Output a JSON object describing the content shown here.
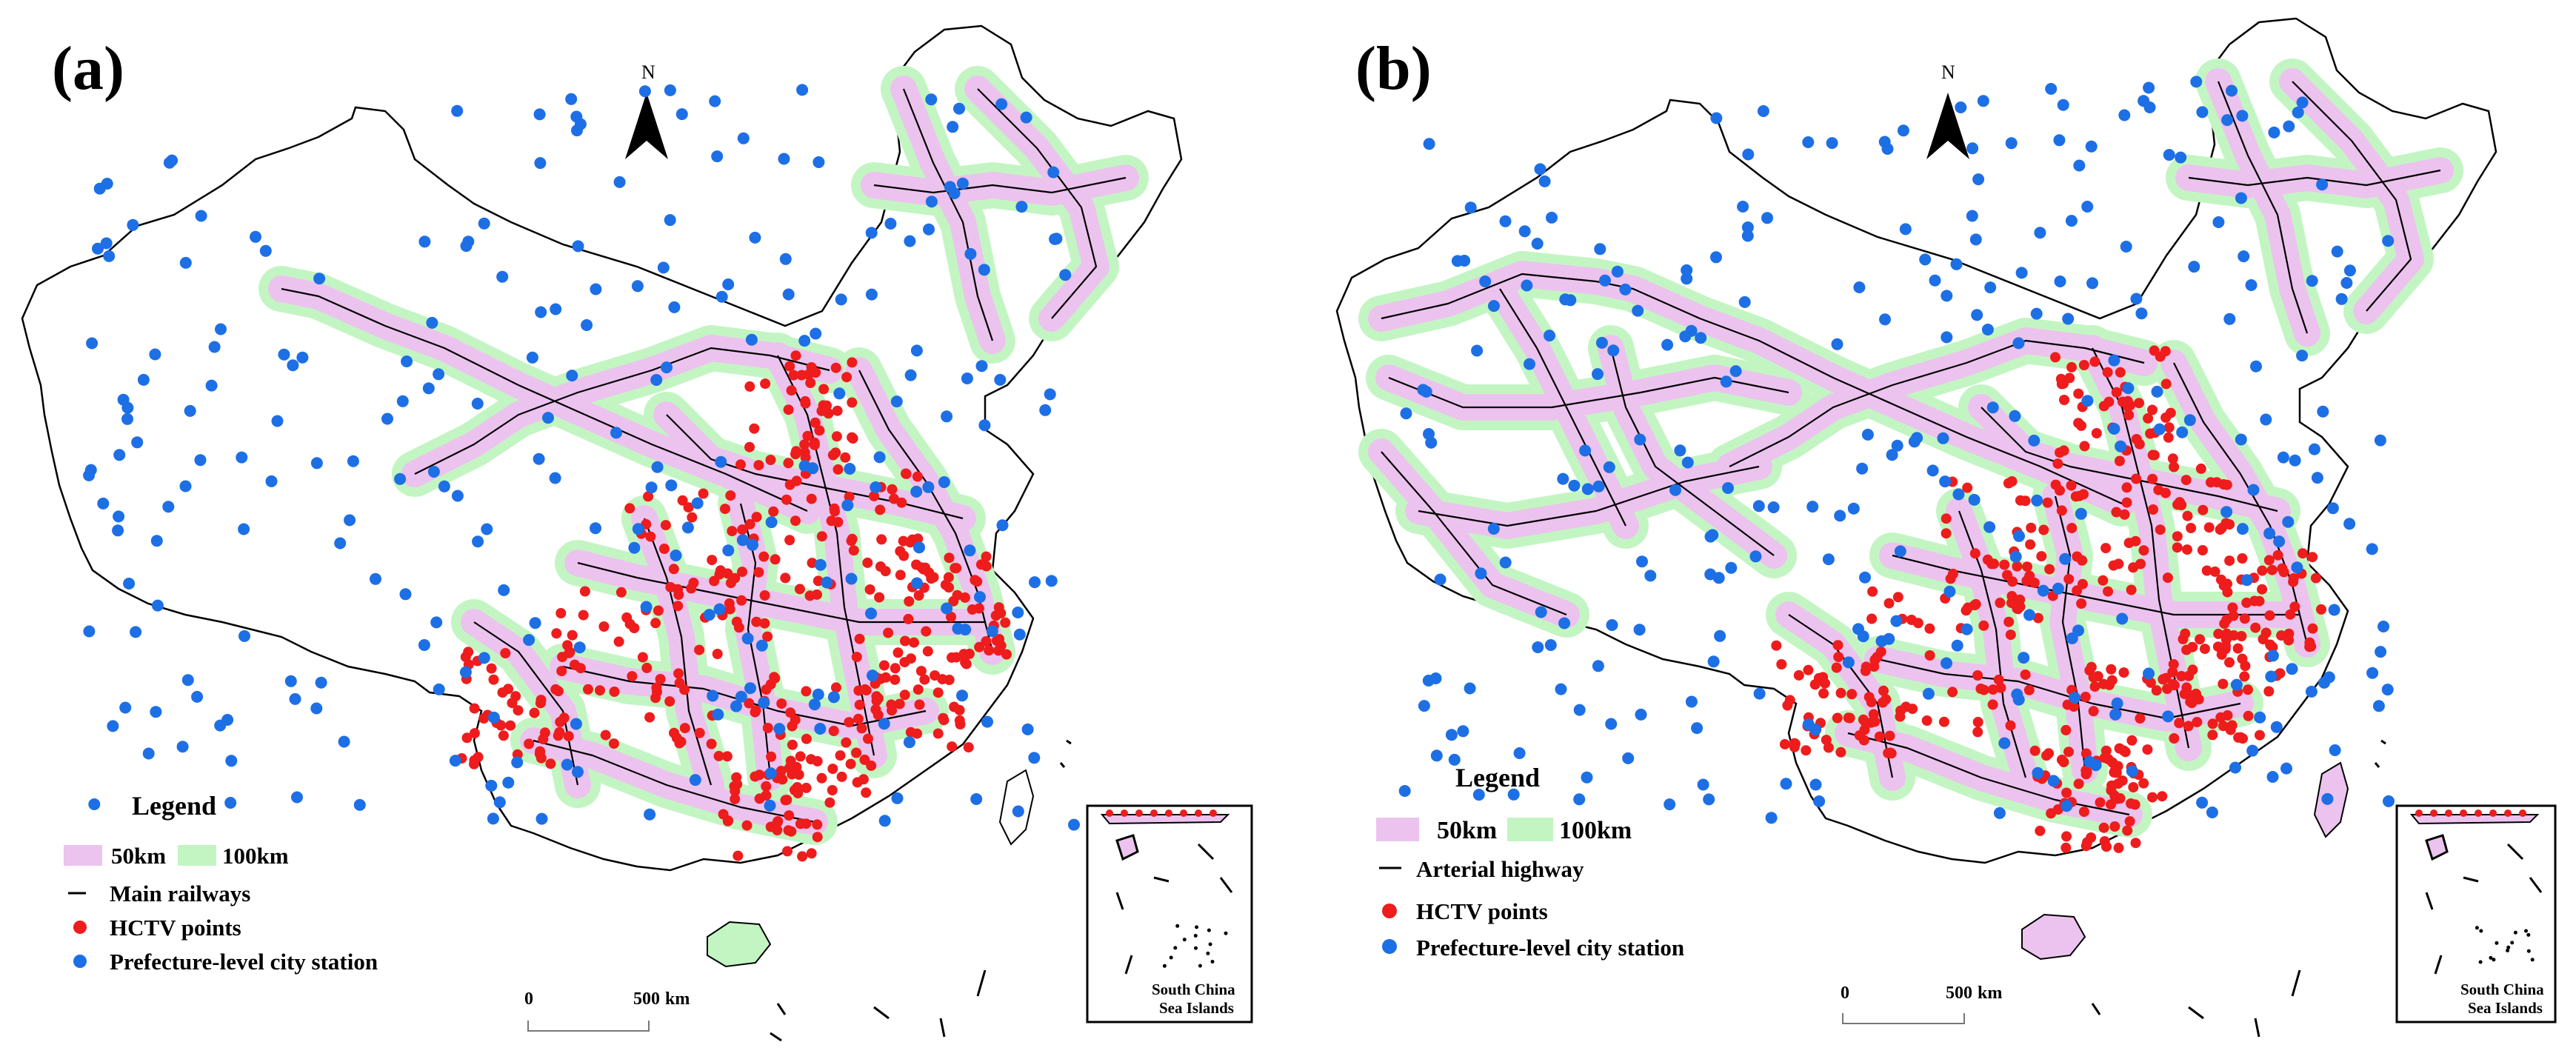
{
  "panels": [
    {
      "label": "(a)",
      "north": "N",
      "legend": {
        "title": "Legend",
        "buffer_50": "50km",
        "buffer_100": "100km",
        "line": "Main railways",
        "red_points": "HCTV points",
        "blue_points": "Prefecture-level city station"
      },
      "scale": {
        "zero": "0",
        "end": "500",
        "unit": "km"
      },
      "inset": {
        "line1": "South China",
        "line2": "Sea Islands"
      }
    },
    {
      "label": "(b)",
      "north": "N",
      "legend": {
        "title": "Legend",
        "buffer_50": "50km",
        "buffer_100": "100km",
        "line": "Arterial highway",
        "red_points": "HCTV points",
        "blue_points": "Prefecture-level city station"
      },
      "scale": {
        "zero": "0",
        "end": "500",
        "unit": "km"
      },
      "inset": {
        "line1": "South China",
        "line2": "Sea Islands"
      }
    }
  ],
  "colors": {
    "buffer_50": "#ecc3ee",
    "buffer_100": "#c3f5c3",
    "network_line": "#000000",
    "hctv_point": "#ee1c1c",
    "city_station": "#1d6fe6"
  }
}
